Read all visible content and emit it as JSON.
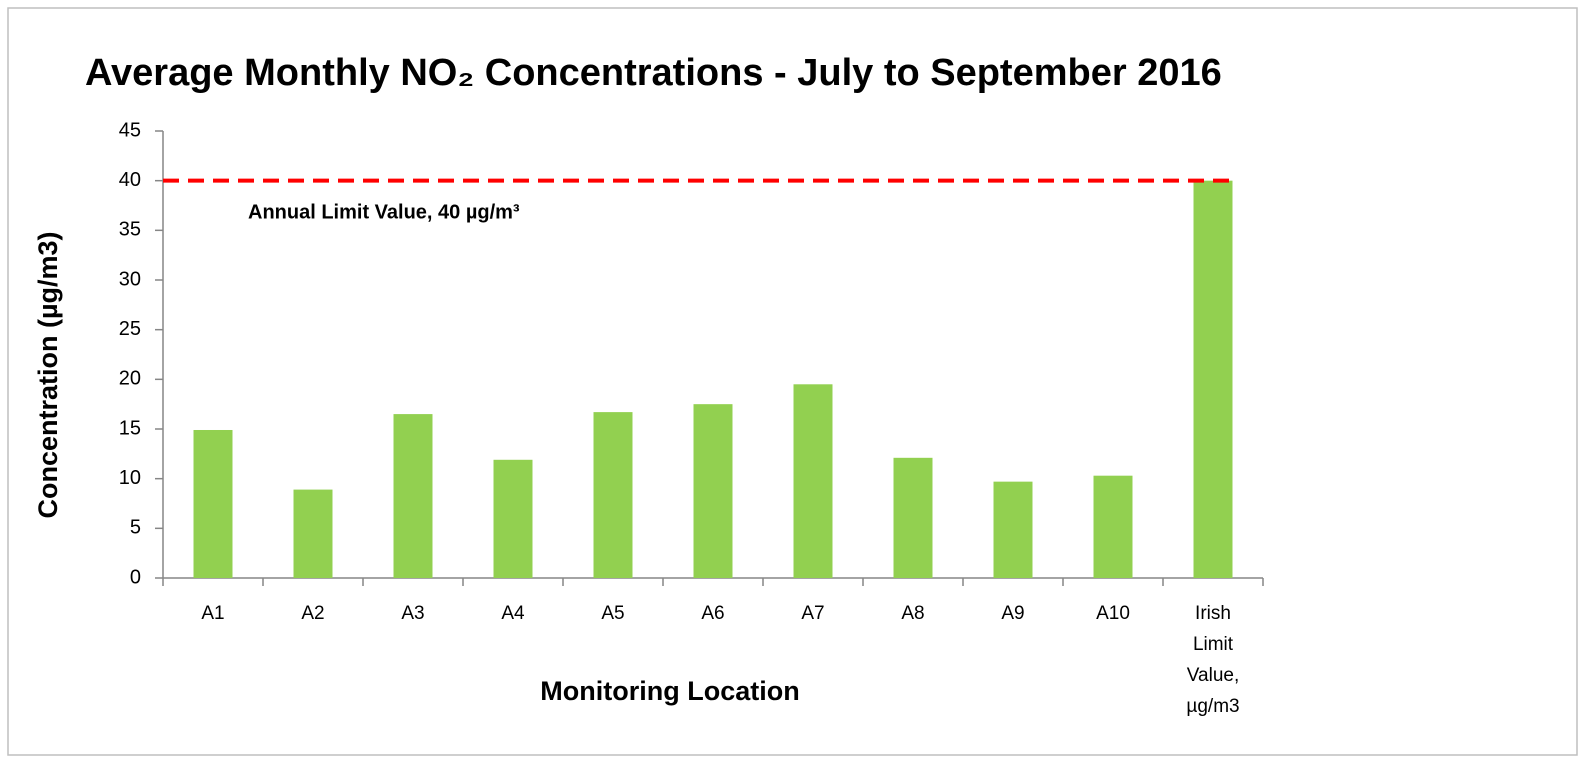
{
  "chart_data": {
    "type": "bar",
    "title": "Average Monthly NO₂ Concentrations - July to September 2016",
    "x_label": "Monitoring Location",
    "y_label": "Concentration (µg/m3)",
    "categories": [
      "A1",
      "A2",
      "A3",
      "A4",
      "A5",
      "A6",
      "A7",
      "A8",
      "A9",
      "A10",
      "Irish Limit Value, µg/m3"
    ],
    "values": [
      14.9,
      8.9,
      16.5,
      11.9,
      16.7,
      17.5,
      19.5,
      12.1,
      9.7,
      10.3,
      40
    ],
    "color": "#92d050",
    "ylim": [
      0,
      45
    ],
    "yticks": [
      0,
      5,
      10,
      15,
      20,
      25,
      30,
      35,
      40,
      45
    ],
    "grid": false,
    "limit_value": 40,
    "limit_color": "#ff0000",
    "annotation": "Annual Limit Value, 40 µg/m³"
  }
}
